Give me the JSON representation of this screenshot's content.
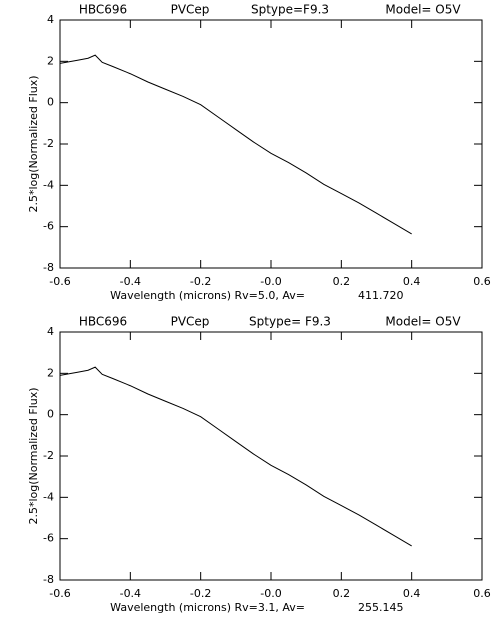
{
  "chart_data": [
    {
      "type": "line",
      "title_parts": [
        "HBC696",
        "PVCep",
        "Sptype=F9.3",
        "Model= O5V"
      ],
      "xlabel": "Wavelength (microns) Rv=5.0, Av=",
      "annotation": "411.720",
      "ylabel": "2.5*log(Normalized Flux)",
      "x": [
        -0.6,
        -0.55,
        -0.52,
        -0.5,
        -0.48,
        -0.45,
        -0.4,
        -0.35,
        -0.3,
        -0.25,
        -0.2,
        -0.15,
        -0.1,
        -0.05,
        0,
        0.05,
        0.1,
        0.15,
        0.2,
        0.25,
        0.3,
        0.35,
        0.4
      ],
      "series": [
        {
          "name": "flux",
          "color": "#000000",
          "values": [
            1.9,
            2.05,
            2.15,
            2.3,
            1.95,
            1.75,
            1.4,
            1.0,
            0.65,
            0.3,
            -0.1,
            -0.7,
            -1.3,
            -1.9,
            -2.45,
            -2.9,
            -3.4,
            -3.95,
            -4.4,
            -4.85,
            -5.35,
            -5.85,
            -6.35
          ]
        }
      ],
      "xlim": [
        -0.6,
        0.6
      ],
      "xticks": [
        -0.6,
        -0.4,
        -0.2,
        {
          "value": 0,
          "label": "-0.0"
        },
        0.2,
        0.4,
        0.6
      ],
      "ylim": [
        -8,
        4
      ],
      "yticks": [
        -8,
        -6,
        -4,
        -2,
        0,
        2,
        4
      ]
    },
    {
      "type": "line",
      "title_parts": [
        "HBC696",
        "PVCep",
        "Sptype= F9.3",
        "Model= O5V"
      ],
      "xlabel": "Wavelength (microns) Rv=3.1, Av=",
      "annotation": "255.145",
      "ylabel": "2.5*log(Normalized Flux)",
      "x": [
        -0.6,
        -0.55,
        -0.52,
        -0.5,
        -0.48,
        -0.45,
        -0.4,
        -0.35,
        -0.3,
        -0.25,
        -0.2,
        -0.15,
        -0.1,
        -0.05,
        0,
        0.05,
        0.1,
        0.15,
        0.2,
        0.25,
        0.3,
        0.35,
        0.4
      ],
      "series": [
        {
          "name": "flux",
          "color": "#000000",
          "values": [
            1.9,
            2.05,
            2.15,
            2.3,
            1.95,
            1.75,
            1.4,
            1.0,
            0.65,
            0.3,
            -0.1,
            -0.7,
            -1.3,
            -1.9,
            -2.45,
            -2.9,
            -3.4,
            -3.95,
            -4.4,
            -4.85,
            -5.35,
            -5.85,
            -6.35
          ]
        }
      ],
      "xlim": [
        -0.6,
        0.6
      ],
      "xticks": [
        -0.6,
        -0.4,
        -0.2,
        {
          "value": 0,
          "label": "-0.0"
        },
        0.2,
        0.4,
        0.6
      ],
      "ylim": [
        -8,
        4
      ],
      "yticks": [
        -8,
        -6,
        -4,
        -2,
        0,
        2,
        4
      ]
    }
  ]
}
